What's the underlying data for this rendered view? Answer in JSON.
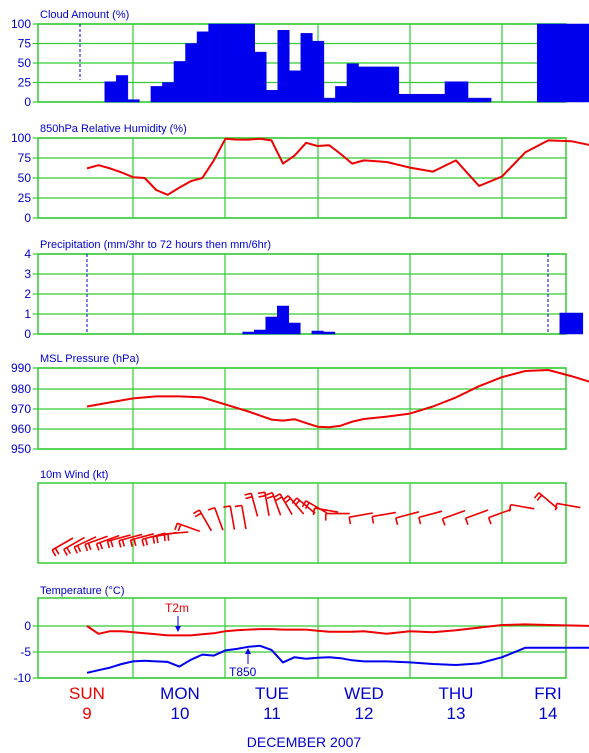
{
  "chart_data": [
    {
      "type": "bar",
      "title": "Cloud Amount (%)",
      "ylim": [
        0,
        100
      ],
      "yticks": [
        "0",
        "25",
        "50",
        "75",
        "100"
      ],
      "x_hours": [
        0,
        6,
        9,
        12,
        15,
        18,
        21,
        24,
        27,
        30,
        33,
        36,
        39,
        42,
        45,
        48,
        51,
        54,
        57,
        60,
        63,
        66,
        69,
        72,
        78,
        84,
        90,
        96,
        102,
        108,
        114,
        120,
        126,
        132
      ],
      "values": [
        0,
        26,
        34,
        3,
        0,
        20,
        25,
        52,
        75,
        90,
        100,
        100,
        100,
        100,
        64,
        15,
        92,
        40,
        88,
        78,
        5,
        20,
        49,
        45,
        45,
        10,
        10,
        26,
        5,
        0,
        0,
        100,
        100,
        100
      ]
    },
    {
      "type": "line",
      "title": "850hPa Relative Humidity (%)",
      "ylim": [
        0,
        100
      ],
      "yticks": [
        "0",
        "25",
        "50",
        "75",
        "100"
      ],
      "x_hours": [
        0,
        3,
        6,
        9,
        12,
        15,
        18,
        21,
        24,
        27,
        30,
        33,
        36,
        39,
        42,
        45,
        48,
        51,
        54,
        57,
        60,
        63,
        66,
        69,
        72,
        78,
        84,
        90,
        96,
        102,
        108,
        114,
        120,
        126,
        132
      ],
      "values": [
        62,
        66,
        62,
        57,
        51,
        50,
        35,
        29,
        38,
        46,
        50,
        72,
        99,
        98,
        98,
        99,
        97,
        68,
        78,
        94,
        90,
        91,
        80,
        68,
        72,
        70,
        63,
        58,
        72,
        40,
        52,
        82,
        97,
        96,
        90
      ]
    },
    {
      "type": "bar",
      "title": "Precipitation (mm/3hr to 72 hours then mm/6hr)",
      "ylim": [
        0,
        4
      ],
      "yticks": [
        "0",
        "1",
        "2",
        "3",
        "4"
      ],
      "x_hours": [
        42,
        45,
        48,
        51,
        54,
        57,
        60,
        63,
        66,
        126
      ],
      "values": [
        0.1,
        0.2,
        0.85,
        1.4,
        0.55,
        0,
        0.15,
        0.1,
        0,
        1.05
      ]
    },
    {
      "type": "line",
      "title": "MSL Pressure (hPa)",
      "ylim": [
        950,
        990
      ],
      "yticks": [
        "950",
        "960",
        "970",
        "980",
        "990"
      ],
      "x_hours": [
        0,
        6,
        12,
        18,
        24,
        30,
        36,
        42,
        48,
        51,
        54,
        57,
        60,
        63,
        66,
        69,
        72,
        78,
        84,
        90,
        96,
        102,
        108,
        114,
        120,
        126,
        132
      ],
      "values": [
        971,
        973,
        975,
        976,
        976,
        975.5,
        972,
        968.5,
        964.5,
        964,
        964.7,
        962.8,
        961,
        960.7,
        961.5,
        963.5,
        964.8,
        966,
        967.5,
        971,
        975.5,
        981,
        985.5,
        988.5,
        989,
        986,
        982.5
      ]
    },
    {
      "type": "line",
      "title": "10m Wind (kt)",
      "barb_hours": [
        0,
        3,
        6,
        9,
        12,
        15,
        18,
        21,
        24,
        27,
        30,
        33,
        36,
        39,
        42,
        45,
        48,
        51,
        54,
        57,
        60,
        63,
        66,
        69,
        72,
        78,
        84,
        90,
        96,
        102,
        108,
        114,
        120,
        126,
        132
      ],
      "wind_dir_deg": [
        240,
        240,
        245,
        250,
        250,
        255,
        255,
        255,
        255,
        260,
        265,
        290,
        330,
        340,
        350,
        350,
        345,
        350,
        340,
        330,
        320,
        310,
        300,
        280,
        270,
        260,
        260,
        255,
        255,
        250,
        250,
        250,
        280,
        310,
        280
      ],
      "wind_speed_kt": [
        15,
        18,
        20,
        22,
        22,
        22,
        20,
        20,
        18,
        18,
        16,
        18,
        15,
        14,
        12,
        14,
        16,
        18,
        20,
        22,
        20,
        18,
        16,
        14,
        12,
        12,
        10,
        10,
        10,
        10,
        10,
        12,
        14,
        15,
        12
      ]
    },
    {
      "type": "line",
      "title": "Temperature (°C)",
      "ylim": [
        -10,
        2
      ],
      "yticks": [
        "-10",
        "-5",
        "0"
      ],
      "x_hours": [
        0,
        3,
        6,
        9,
        12,
        15,
        18,
        21,
        24,
        27,
        30,
        33,
        36,
        39,
        42,
        45,
        48,
        51,
        54,
        57,
        60,
        63,
        66,
        69,
        72,
        78,
        84,
        90,
        96,
        102,
        108,
        114,
        120,
        126,
        132
      ],
      "series": [
        {
          "name": "T2m",
          "color": "#ee0000",
          "values": [
            0,
            -1.5,
            -1,
            -1,
            -1.2,
            -1.4,
            -1.6,
            -1.8,
            -1.8,
            -1.8,
            -1.6,
            -1.4,
            -1,
            -0.8,
            -0.7,
            -0.6,
            -0.6,
            -0.7,
            -0.7,
            -0.7,
            -0.9,
            -1.1,
            -1.1,
            -1.1,
            -1,
            -1.5,
            -1,
            -1.2,
            -0.8,
            -0.3,
            0.2,
            0.3,
            0.2,
            0.1,
            0
          ]
        },
        {
          "name": "T850",
          "color": "#0000ee",
          "values": [
            -9,
            -8.5,
            -8,
            -7.3,
            -6.8,
            -6.7,
            -6.8,
            -6.9,
            -7.8,
            -6.5,
            -5.5,
            -5.7,
            -4.7,
            -4.4,
            -4,
            -3.8,
            -4.6,
            -7,
            -6,
            -6.3,
            -6.1,
            -6,
            -6.2,
            -6.6,
            -6.8,
            -6.8,
            -7,
            -7.3,
            -7.5,
            -7.2,
            -6,
            -4.2,
            -4.2,
            -4.2,
            -4.2
          ]
        }
      ],
      "annotations": [
        "T2m",
        "T850"
      ]
    }
  ],
  "days": [
    {
      "name": "SUN",
      "num": "9",
      "color": "#ee0000"
    },
    {
      "name": "MON",
      "num": "10",
      "color": "#0000cc"
    },
    {
      "name": "TUE",
      "num": "11",
      "color": "#0000cc"
    },
    {
      "name": "WED",
      "num": "12",
      "color": "#0000cc"
    },
    {
      "name": "THU",
      "num": "13",
      "color": "#0000cc"
    },
    {
      "name": "FRI",
      "num": "14",
      "color": "#0000cc"
    }
  ],
  "month_label": "DECEMBER 2007",
  "colors": {
    "grid": "#33cc33",
    "bars": "#0000ee",
    "line": "#ee0000",
    "text": "#0000cc"
  }
}
